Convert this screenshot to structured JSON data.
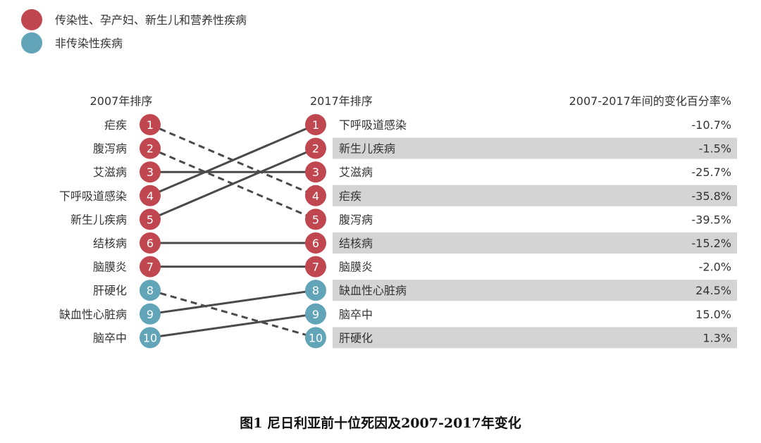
{
  "chart_data": {
    "type": "slope",
    "legend": [
      {
        "label": "传染性、孕产妇、新生儿和营养性疾病",
        "color": "#c0474f"
      },
      {
        "label": "非传染性疾病",
        "color": "#62a4b8"
      }
    ],
    "left_header": "2007年排序",
    "mid_header": "2017年排序",
    "right_header": "2007-2017年间的变化百分率%",
    "diseases_2007": [
      "疟疾",
      "腹泻病",
      "艾滋病",
      "下呼吸道感染",
      "新生儿疾病",
      "结核病",
      "脑膜炎",
      "肝硬化",
      "缺血性心脏病",
      "脑卒中"
    ],
    "groups_2007": [
      0,
      0,
      0,
      0,
      0,
      0,
      0,
      1,
      1,
      1
    ],
    "rank_2017_of_2007": [
      4,
      5,
      3,
      1,
      2,
      6,
      7,
      10,
      8,
      9
    ],
    "diseases_2017": [
      "下呼吸道感染",
      "新生儿疾病",
      "艾滋病",
      "疟疾",
      "腹泻病",
      "结核病",
      "脑膜炎",
      "缺血性心脏病",
      "脑卒中",
      "肝硬化"
    ],
    "groups_2017": [
      0,
      0,
      0,
      0,
      0,
      0,
      0,
      1,
      1,
      1
    ],
    "change_pct": [
      "-10.7%",
      "-1.5%",
      "-25.7%",
      "-35.8%",
      "-39.5%",
      "-15.2%",
      "-2.0%",
      "24.5%",
      "15.0%",
      "1.3%"
    ],
    "ranks": [
      "1",
      "2",
      "3",
      "4",
      "5",
      "6",
      "7",
      "8",
      "9",
      "10"
    ]
  },
  "caption": "图1  尼日利亚前十位死因及2007-2017年变化"
}
